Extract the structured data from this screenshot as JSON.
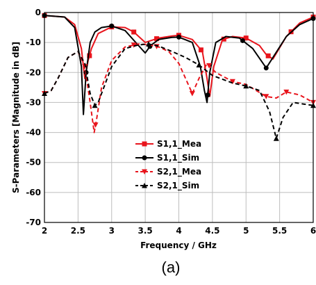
{
  "chart_data": {
    "type": "line",
    "caption": "(a)",
    "xlabel": "Frequency / GHz",
    "ylabel": "S-Parameters [Magnitude in dB]",
    "xlim": [
      2,
      6
    ],
    "ylim": [
      -70,
      0
    ],
    "xticks": [
      2,
      2.5,
      3,
      3.5,
      4,
      4.5,
      5,
      5.5,
      6
    ],
    "xtick_labels": [
      "2",
      "2.5",
      "3",
      "3.5",
      "4",
      "4.5",
      "5",
      "5.5",
      "6"
    ],
    "yticks": [
      0,
      -10,
      -20,
      -30,
      -40,
      -50,
      -60,
      -70
    ],
    "ytick_labels": [
      "0",
      "-10",
      "-20",
      "-30",
      "-40",
      "-50",
      "-60",
      "-70"
    ],
    "grid": true,
    "legend_position": "center-right",
    "series": [
      {
        "name": "S1,1_Mea",
        "color": "#e8141c",
        "dash": "solid",
        "marker": "square",
        "x": [
          2.0,
          2.3,
          2.45,
          2.55,
          2.6,
          2.65,
          2.7,
          2.8,
          3.0,
          3.2,
          3.33,
          3.5,
          3.7,
          3.9,
          4.0,
          4.2,
          4.35,
          4.42,
          4.46,
          4.52,
          4.65,
          4.8,
          5.0,
          5.2,
          5.3,
          5.4,
          5.6,
          5.8,
          6.0
        ],
        "y": [
          -1,
          -1.5,
          -4,
          -12,
          -22,
          -16,
          -12,
          -7,
          -4.8,
          -5,
          -6.5,
          -10,
          -8.5,
          -7.8,
          -7.6,
          -9,
          -13,
          -22,
          -28,
          -18,
          -9,
          -8,
          -8.5,
          -11,
          -14,
          -15.5,
          -8,
          -3.5,
          -1.5
        ],
        "marker_x": [
          2.0,
          2.67,
          3.0,
          3.33,
          3.67,
          4.0,
          4.33,
          4.67,
          5.0,
          5.33,
          5.67,
          6.0
        ]
      },
      {
        "name": "S1,1_Sim",
        "color": "#000000",
        "dash": "solid",
        "marker": "circle",
        "x": [
          2.0,
          2.3,
          2.45,
          2.55,
          2.58,
          2.62,
          2.68,
          2.75,
          2.85,
          3.0,
          3.2,
          3.4,
          3.5,
          3.58,
          3.7,
          3.9,
          4.0,
          4.2,
          4.32,
          4.38,
          4.42,
          4.46,
          4.55,
          4.7,
          4.9,
          5.1,
          5.3,
          5.4,
          5.6,
          5.8,
          6.0
        ],
        "y": [
          -1,
          -1.5,
          -5,
          -18,
          -34,
          -20,
          -10,
          -6.5,
          -5,
          -4.5,
          -6,
          -11,
          -13.5,
          -11,
          -9,
          -8.3,
          -8.2,
          -10,
          -18,
          -26,
          -30,
          -20,
          -10,
          -8,
          -8.5,
          -12,
          -18.5,
          -15,
          -8,
          -4,
          -2
        ],
        "marker_x": [
          2.0,
          2.62,
          3.0,
          3.57,
          4.0,
          4.43,
          4.95,
          5.3,
          6.0
        ]
      },
      {
        "name": "S2,1_Mea",
        "color": "#e8141c",
        "dash": "dash",
        "marker": "triangle-down",
        "x": [
          2.0,
          2.1,
          2.2,
          2.35,
          2.5,
          2.6,
          2.68,
          2.74,
          2.78,
          2.85,
          3.0,
          3.2,
          3.4,
          3.55,
          3.7,
          3.85,
          4.0,
          4.1,
          4.2,
          4.3,
          4.42,
          4.55,
          4.8,
          5.0,
          5.3,
          5.45,
          5.6,
          5.8,
          6.0
        ],
        "y": [
          -27,
          -26,
          -22,
          -15,
          -13,
          -18,
          -30,
          -40,
          -35,
          -25,
          -16,
          -11.5,
          -10.5,
          -10.7,
          -11.5,
          -13,
          -17,
          -22,
          -27,
          -22,
          -17,
          -20,
          -23,
          -24,
          -28,
          -28.5,
          -26.5,
          -27.5,
          -30
        ],
        "marker_x": [
          2.0,
          2.6,
          2.76,
          3.33,
          3.67,
          4.2,
          4.45,
          4.8,
          5.3,
          5.6,
          6.0
        ]
      },
      {
        "name": "S2,1_Sim",
        "color": "#000000",
        "dash": "dash",
        "marker": "triangle-up",
        "x": [
          2.0,
          2.1,
          2.2,
          2.35,
          2.5,
          2.6,
          2.68,
          2.75,
          2.8,
          2.9,
          3.0,
          3.2,
          3.4,
          3.55,
          3.7,
          3.9,
          4.1,
          4.3,
          4.5,
          4.8,
          5.0,
          5.2,
          5.35,
          5.45,
          5.55,
          5.7,
          5.85,
          6.0
        ],
        "y": [
          -27,
          -26,
          -22,
          -15,
          -13,
          -17,
          -27,
          -31,
          -30,
          -24,
          -18,
          -12,
          -10.8,
          -10.5,
          -11.2,
          -13,
          -15,
          -17.5,
          -21,
          -23.5,
          -24.5,
          -26,
          -33,
          -42,
          -35,
          -30,
          -30.5,
          -31
        ],
        "marker_x": [
          2.0,
          2.75,
          3.55,
          4.3,
          5.0,
          5.45,
          6.0
        ]
      }
    ]
  }
}
